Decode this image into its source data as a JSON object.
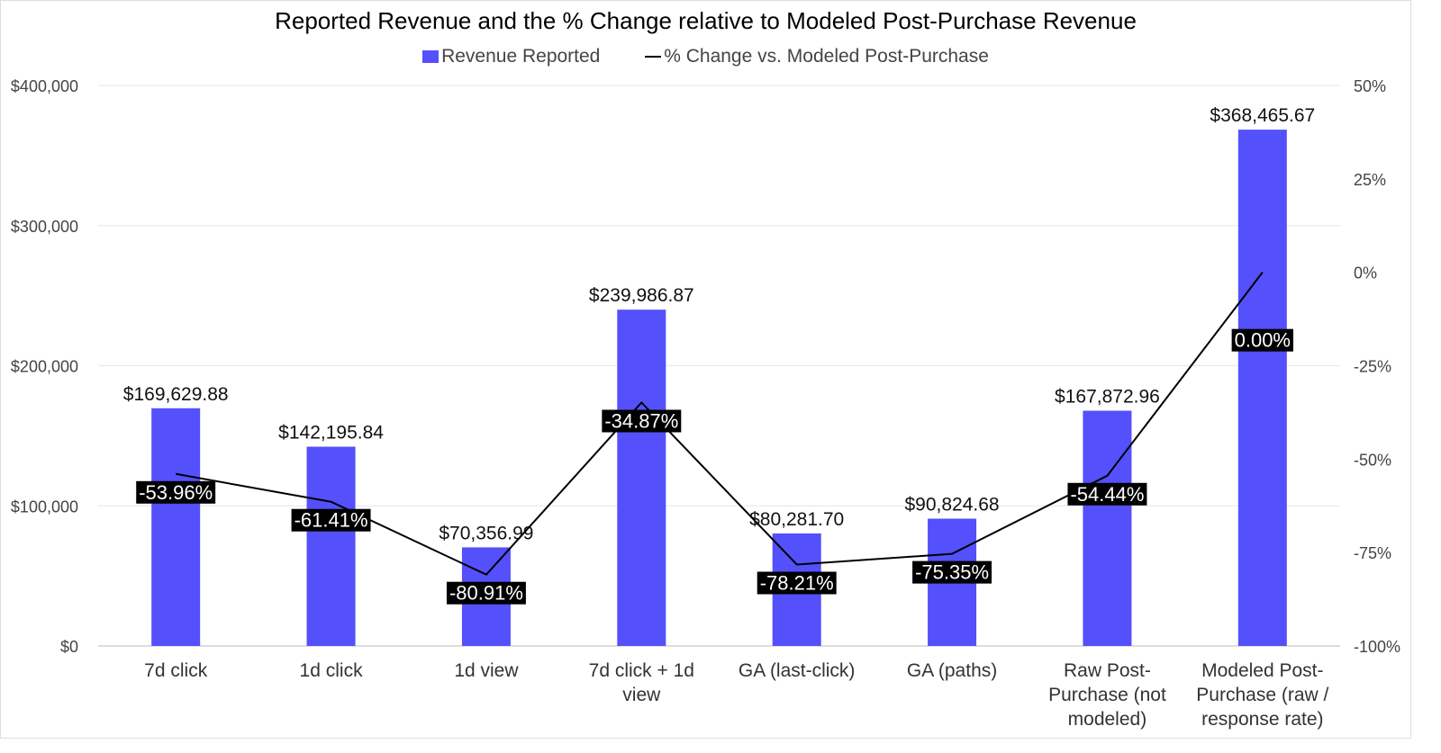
{
  "chart_data": {
    "type": "bar+line",
    "title": "Reported Revenue and the % Change relative to Modeled Post-Purchase Revenue",
    "categories": [
      "7d click",
      "1d click",
      "1d view",
      "7d click + 1d view",
      "GA (last-click)",
      "GA (paths)",
      "Raw Post-Purchase (not modeled)",
      "Modeled Post-Purchase (raw / response rate)"
    ],
    "series": [
      {
        "name": "Revenue Reported",
        "type": "bar",
        "axis": "left",
        "color": "#5450FB",
        "values": [
          169629.88,
          142195.84,
          70356.99,
          239986.87,
          80281.7,
          90824.68,
          167872.96,
          368465.67
        ],
        "labels": [
          "$169,629.88",
          "$142,195.84",
          "$70,356.99",
          "$239,986.87",
          "$80,281.70",
          "$90,824.68",
          "$167,872.96",
          "$368,465.67"
        ]
      },
      {
        "name": "% Change vs. Modeled Post-Purchase",
        "type": "line",
        "axis": "right",
        "color": "#000000",
        "values": [
          -53.96,
          -61.41,
          -80.91,
          -34.87,
          -78.21,
          -75.35,
          -54.44,
          0.0
        ],
        "labels": [
          "-53.96%",
          "-61.41%",
          "-80.91%",
          "-34.87%",
          "-78.21%",
          "-75.35%",
          "-54.44%",
          "0.00%"
        ]
      }
    ],
    "y_left": {
      "range": [
        0,
        400000
      ],
      "ticks": [
        "$0",
        "$100,000",
        "$200,000",
        "$300,000",
        "$400,000"
      ]
    },
    "y_right": {
      "range": [
        -100,
        50
      ],
      "ticks": [
        "-100%",
        "-75%",
        "-50%",
        "-25%",
        "0%",
        "25%",
        "50%"
      ]
    },
    "grid": true,
    "legend": "top"
  }
}
